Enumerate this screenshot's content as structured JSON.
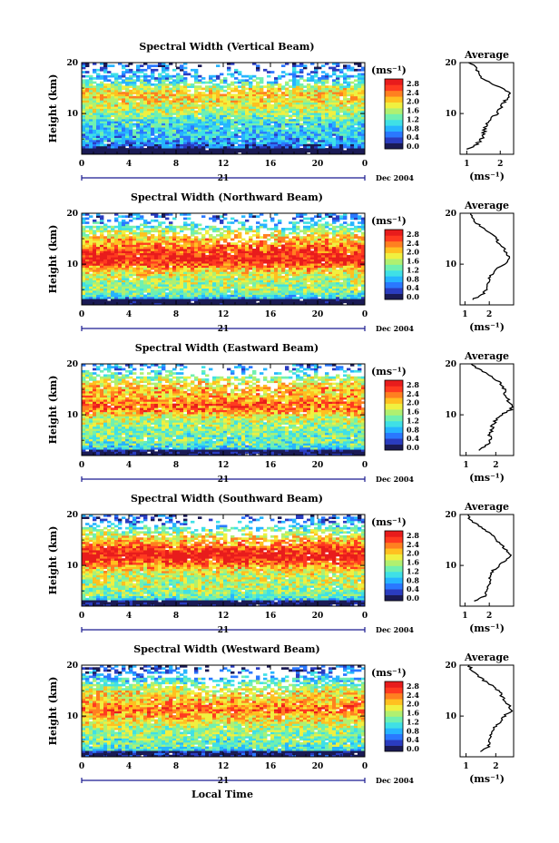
{
  "figure": {
    "date_label": "Dec 2004",
    "day_label": "21",
    "x_axis_title": "Local Time",
    "y_axis_title": "Height (km)",
    "unit_label": "(ms⁻¹)",
    "avg_title": "Average",
    "colorbar_ticks": [
      "0.0",
      "0.4",
      "0.8",
      "1.2",
      "1.6",
      "2.0",
      "2.4",
      "2.8"
    ],
    "colorbar_colors": [
      "#1a1a55",
      "#2a3cc0",
      "#2a78ff",
      "#26b4ff",
      "#3fe0e6",
      "#70f0b0",
      "#b0f070",
      "#f0f040",
      "#ffc020",
      "#ff8020",
      "#ff3a20",
      "#e81c1c"
    ]
  },
  "chart_data": [
    {
      "type": "heatmap",
      "title": "Spectral Width (Vertical Beam)",
      "xlabel": "Local Time",
      "ylabel": "Height (km)",
      "xlim": [
        0,
        24
      ],
      "ylim": [
        2,
        20
      ],
      "xticks": [
        "0",
        "4",
        "8",
        "12",
        "16",
        "20",
        "0"
      ],
      "yticks": [
        "10",
        "20"
      ],
      "colorbar": {
        "label": "(ms⁻¹)",
        "range": [
          0.0,
          2.8
        ]
      },
      "profile": {
        "title": "Average",
        "xlabel": "(ms⁻¹)",
        "xlim": [
          0.8,
          2.4
        ],
        "xticks": [
          "1",
          "2"
        ],
        "heights": [
          3,
          4,
          5,
          6,
          7,
          8,
          9,
          10,
          11,
          12,
          13,
          14,
          15,
          16,
          17,
          18,
          19,
          20
        ],
        "values": [
          1.0,
          1.3,
          1.45,
          1.5,
          1.55,
          1.6,
          1.7,
          1.9,
          2.0,
          2.1,
          2.2,
          2.25,
          2.05,
          1.7,
          1.45,
          1.35,
          1.25,
          1.1
        ]
      }
    },
    {
      "type": "heatmap",
      "title": "Spectral Width (Northward Beam)",
      "xlabel": "Local Time",
      "ylabel": "Height (km)",
      "xlim": [
        0,
        24
      ],
      "ylim": [
        2,
        20
      ],
      "xticks": [
        "0",
        "4",
        "8",
        "12",
        "16",
        "20",
        "0"
      ],
      "yticks": [
        "10",
        "20"
      ],
      "colorbar": {
        "label": "(ms⁻¹)",
        "range": [
          0.0,
          2.8
        ]
      },
      "profile": {
        "title": "Average",
        "xlabel": "(ms⁻¹)",
        "xlim": [
          0.8,
          3.0
        ],
        "xticks": [
          "1",
          "2"
        ],
        "heights": [
          3,
          4,
          5,
          6,
          7,
          8,
          9,
          10,
          11,
          12,
          13,
          14,
          15,
          16,
          17,
          18,
          19,
          20
        ],
        "values": [
          1.3,
          1.7,
          1.9,
          1.9,
          2.0,
          2.1,
          2.3,
          2.6,
          2.85,
          2.75,
          2.6,
          2.4,
          2.3,
          2.1,
          1.8,
          1.5,
          1.3,
          1.2
        ]
      }
    },
    {
      "type": "heatmap",
      "title": "Spectral Width (Eastward Beam)",
      "xlabel": "Local Time",
      "ylabel": "Height (km)",
      "xlim": [
        0,
        24
      ],
      "ylim": [
        2,
        20
      ],
      "xticks": [
        "0",
        "4",
        "8",
        "12",
        "16",
        "20",
        "0"
      ],
      "yticks": [
        "10",
        "20"
      ],
      "colorbar": {
        "label": "(ms⁻¹)",
        "range": [
          0.0,
          2.8
        ]
      },
      "profile": {
        "title": "Average",
        "xlabel": "(ms⁻¹)",
        "xlim": [
          0.8,
          2.6
        ],
        "xticks": [
          "1",
          "2"
        ],
        "heights": [
          3,
          4,
          5,
          6,
          7,
          8,
          9,
          10,
          11,
          12,
          13,
          14,
          15,
          16,
          17,
          18,
          19,
          20
        ],
        "values": [
          1.4,
          1.7,
          1.8,
          1.8,
          1.85,
          1.9,
          2.0,
          2.2,
          2.5,
          2.55,
          2.4,
          2.3,
          2.3,
          2.2,
          2.0,
          1.7,
          1.4,
          1.2
        ]
      }
    },
    {
      "type": "heatmap",
      "title": "Spectral Width (Southward Beam)",
      "xlabel": "Local Time",
      "ylabel": "Height (km)",
      "xlim": [
        0,
        24
      ],
      "ylim": [
        2,
        20
      ],
      "xticks": [
        "0",
        "4",
        "8",
        "12",
        "16",
        "20",
        "0"
      ],
      "yticks": [
        "10",
        "20"
      ],
      "colorbar": {
        "label": "(ms⁻¹)",
        "range": [
          0.0,
          2.8
        ]
      },
      "profile": {
        "title": "Average",
        "xlabel": "(ms⁻¹)",
        "xlim": [
          0.8,
          3.0
        ],
        "xticks": [
          "1",
          "2"
        ],
        "heights": [
          3,
          4,
          5,
          6,
          7,
          8,
          9,
          10,
          11,
          12,
          13,
          14,
          15,
          16,
          17,
          18,
          19,
          20
        ],
        "values": [
          1.4,
          1.8,
          1.9,
          2.0,
          2.0,
          2.05,
          2.15,
          2.4,
          2.7,
          2.9,
          2.7,
          2.5,
          2.3,
          2.1,
          1.8,
          1.5,
          1.2,
          1.1
        ]
      }
    },
    {
      "type": "heatmap",
      "title": "Spectral Width (Westward Beam)",
      "xlabel": "Local Time",
      "ylabel": "Height (km)",
      "xlim": [
        0,
        24
      ],
      "ylim": [
        2,
        20
      ],
      "xticks": [
        "0",
        "4",
        "8",
        "12",
        "16",
        "20",
        "0"
      ],
      "yticks": [
        "10",
        "20"
      ],
      "colorbar": {
        "label": "(ms⁻¹)",
        "range": [
          0.0,
          2.8
        ]
      },
      "profile": {
        "title": "Average",
        "xlabel": "(ms⁻¹)",
        "xlim": [
          0.8,
          2.6
        ],
        "xticks": [
          "1",
          "2"
        ],
        "heights": [
          3,
          4,
          5,
          6,
          7,
          8,
          9,
          10,
          11,
          12,
          13,
          14,
          15,
          16,
          17,
          18,
          19,
          20
        ],
        "values": [
          1.5,
          1.75,
          1.8,
          1.85,
          1.9,
          2.0,
          2.15,
          2.3,
          2.5,
          2.45,
          2.3,
          2.2,
          2.1,
          1.9,
          1.6,
          1.4,
          1.2,
          1.1
        ]
      }
    }
  ]
}
